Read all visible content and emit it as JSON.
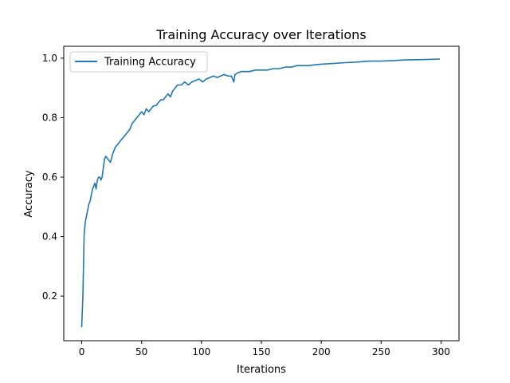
{
  "chart_data": {
    "type": "line",
    "title": "Training Accuracy over Iterations",
    "xlabel": "Iterations",
    "ylabel": "Accuracy",
    "xlim": [
      -15,
      315
    ],
    "ylim": [
      0.05,
      1.04
    ],
    "xticks": [
      0,
      50,
      100,
      150,
      200,
      250,
      300
    ],
    "yticks": [
      0.2,
      0.4,
      0.6,
      0.8,
      1.0
    ],
    "ytick_labels": [
      "0.2",
      "0.4",
      "0.6",
      "0.8",
      "1.0"
    ],
    "grid": false,
    "legend_position": "top-left",
    "series": [
      {
        "name": "Training Accuracy",
        "color": "#1f77b4",
        "x": [
          0,
          1,
          2,
          3,
          4,
          5,
          6,
          7,
          8,
          9,
          10,
          11,
          12,
          13,
          14,
          15,
          16,
          17,
          18,
          19,
          20,
          22,
          24,
          26,
          28,
          30,
          32,
          34,
          36,
          38,
          40,
          42,
          44,
          46,
          48,
          50,
          52,
          54,
          56,
          58,
          60,
          62,
          64,
          66,
          68,
          70,
          72,
          74,
          76,
          78,
          80,
          83,
          86,
          89,
          92,
          95,
          98,
          101,
          104,
          107,
          110,
          113,
          116,
          119,
          122,
          125,
          127,
          128,
          130,
          133,
          136,
          140,
          145,
          150,
          155,
          160,
          165,
          170,
          175,
          180,
          185,
          190,
          195,
          200,
          210,
          220,
          230,
          240,
          250,
          260,
          270,
          280,
          290,
          299
        ],
        "values": [
          0.095,
          0.2,
          0.41,
          0.45,
          0.47,
          0.49,
          0.51,
          0.52,
          0.54,
          0.56,
          0.57,
          0.58,
          0.56,
          0.59,
          0.6,
          0.6,
          0.59,
          0.6,
          0.63,
          0.66,
          0.67,
          0.66,
          0.65,
          0.68,
          0.7,
          0.71,
          0.72,
          0.73,
          0.74,
          0.75,
          0.76,
          0.78,
          0.79,
          0.8,
          0.81,
          0.82,
          0.81,
          0.83,
          0.82,
          0.83,
          0.84,
          0.84,
          0.85,
          0.86,
          0.86,
          0.87,
          0.88,
          0.87,
          0.89,
          0.9,
          0.91,
          0.91,
          0.92,
          0.91,
          0.92,
          0.925,
          0.93,
          0.92,
          0.93,
          0.935,
          0.94,
          0.935,
          0.94,
          0.945,
          0.94,
          0.94,
          0.92,
          0.945,
          0.95,
          0.955,
          0.955,
          0.955,
          0.96,
          0.96,
          0.96,
          0.965,
          0.965,
          0.97,
          0.97,
          0.975,
          0.975,
          0.975,
          0.978,
          0.98,
          0.982,
          0.985,
          0.987,
          0.99,
          0.99,
          0.992,
          0.994,
          0.995,
          0.996,
          0.997
        ]
      }
    ]
  }
}
